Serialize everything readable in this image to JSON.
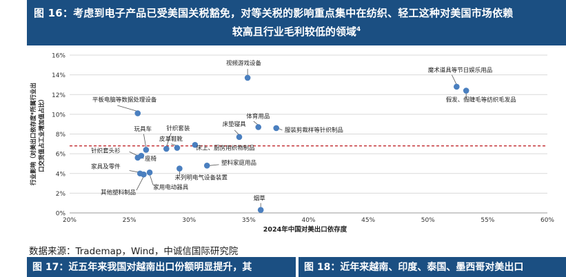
{
  "header": {
    "title_line1": "图 16：考虑到电子产品已受美国关税豁免，对等关税的影响重点集中在纺织、轻工这种对美国市场依赖",
    "title_line2": "较高且行业毛利较低的领域",
    "title_sup": "4"
  },
  "source": "数据来源：Trademap，Wind，中诚信国际研究院",
  "next_figures": {
    "fig17": "图 17：近五年来我国对越南出口份额明显提升，其",
    "fig18": "图 18：近年来越南、印度、泰国、墨西哥对美出口"
  },
  "chart_data": {
    "type": "scatter",
    "xlabel": "2024年中国对美出口依存度",
    "ylabel_lines": [
      "行业影响（对美出口依存度*所属行业出",
      "口交货值占工业增加值占比）"
    ],
    "xlim": [
      0.2,
      0.6
    ],
    "ylim": [
      0.0,
      0.16
    ],
    "xticks": [
      "20%",
      "25%",
      "30%",
      "35%",
      "40%",
      "45%",
      "50%",
      "55%",
      "60%"
    ],
    "yticks": [
      "0%",
      "2%",
      "4%",
      "6%",
      "8%",
      "10%",
      "12%",
      "14%",
      "16%"
    ],
    "point_color": "#4a7fbf",
    "threshold_color": "#c0272d",
    "threshold": 0.068,
    "points": [
      {
        "name": "视频游戏设备",
        "x": 0.349,
        "y": 0.137
      },
      {
        "name": "魔术道具等节日娱乐用品",
        "x": 0.524,
        "y": 0.128
      },
      {
        "name": "假发、假睫毛等纺织毛发品",
        "x": 0.532,
        "y": 0.124
      },
      {
        "name": "平板电脑等数据处理设备",
        "x": 0.257,
        "y": 0.101
      },
      {
        "name": "体育用品",
        "x": 0.358,
        "y": 0.087
      },
      {
        "name": "服装剪裁样等针织制品",
        "x": 0.373,
        "y": 0.086
      },
      {
        "name": "床垫寝具",
        "x": 0.342,
        "y": 0.077
      },
      {
        "name": "玩具车",
        "x": 0.264,
        "y": 0.064
      },
      {
        "name": "针织套装",
        "x": 0.281,
        "y": 0.065
      },
      {
        "name": "皮革鞋靴",
        "x": 0.29,
        "y": 0.066
      },
      {
        "name": "床上、厨房用织物制品",
        "x": 0.305,
        "y": 0.069
      },
      {
        "name": "针织套头衫",
        "x": 0.257,
        "y": 0.056
      },
      {
        "name": "座椅",
        "x": 0.26,
        "y": 0.058
      },
      {
        "name": "家具及零件",
        "x": 0.259,
        "y": 0.04
      },
      {
        "name": "家用电动器具",
        "x": 0.267,
        "y": 0.041
      },
      {
        "name": "未列明电气设备装置",
        "x": 0.292,
        "y": 0.045
      },
      {
        "name": "塑料家庭用品",
        "x": 0.315,
        "y": 0.048
      },
      {
        "name": "其他塑料制品",
        "x": 0.262,
        "y": 0.039
      },
      {
        "name": "烟草",
        "x": 0.36,
        "y": 0.003
      }
    ],
    "annotations": [
      {
        "text": "视频游戏设备",
        "tx": 0.331,
        "ty": 0.15,
        "anchor": "start",
        "line": [
          0.349,
          0.146,
          0.349,
          0.139
        ]
      },
      {
        "text": "魔术道具等节日娱乐用品",
        "tx": 0.5,
        "ty": 0.143,
        "anchor": "start",
        "line": [
          0.52,
          0.14,
          0.524,
          0.13
        ]
      },
      {
        "text": "假发、假睫毛等纺织毛发品",
        "tx": 0.515,
        "ty": 0.113,
        "anchor": "start",
        "line": [
          0.532,
          0.116,
          0.532,
          0.122
        ]
      },
      {
        "text": "平板电脑等数据处理设备",
        "tx": 0.219,
        "ty": 0.113,
        "anchor": "start",
        "line": [
          0.24,
          0.109,
          0.257,
          0.103
        ]
      },
      {
        "text": "体育用品",
        "tx": 0.348,
        "ty": 0.096,
        "anchor": "start",
        "line": [
          0.354,
          0.093,
          0.358,
          0.089
        ]
      },
      {
        "text": "服装剪裁样等针织制品",
        "tx": 0.38,
        "ty": 0.082,
        "anchor": "start",
        "line": [
          0.378,
          0.084,
          0.374,
          0.086
        ]
      },
      {
        "text": "床垫寝具",
        "tx": 0.328,
        "ty": 0.088,
        "anchor": "start",
        "line": [
          0.338,
          0.084,
          0.342,
          0.079
        ]
      },
      {
        "text": "玩具车",
        "tx": 0.254,
        "ty": 0.083,
        "anchor": "start",
        "line": [
          0.262,
          0.08,
          0.264,
          0.066
        ]
      },
      {
        "text": "针织套装",
        "tx": 0.281,
        "ty": 0.084,
        "anchor": "start",
        "line": [
          0.285,
          0.081,
          0.281,
          0.067
        ]
      },
      {
        "text": "皮革鞋靴",
        "tx": 0.275,
        "ty": 0.073,
        "anchor": "start",
        "line": [
          0.285,
          0.07,
          0.29,
          0.068
        ]
      },
      {
        "text": "床上、厨房用织物制品",
        "tx": 0.306,
        "ty": 0.064,
        "anchor": "start",
        "line": [
          0.306,
          0.066,
          0.305,
          0.069
        ]
      },
      {
        "text": "针织套头衫",
        "tx": 0.218,
        "ty": 0.061,
        "anchor": "start",
        "line": [
          0.25,
          0.062,
          0.257,
          0.058
        ]
      },
      {
        "text": "座椅",
        "tx": 0.263,
        "ty": 0.053,
        "anchor": "start",
        "line": [
          0.262,
          0.055,
          0.26,
          0.058
        ]
      },
      {
        "text": "家具及零件",
        "tx": 0.218,
        "ty": 0.045,
        "anchor": "start",
        "line": [
          0.25,
          0.043,
          0.259,
          0.041
        ]
      },
      {
        "text": "其他塑料制品",
        "tx": 0.226,
        "ty": 0.019,
        "anchor": "start",
        "line": [
          0.256,
          0.023,
          0.262,
          0.037
        ]
      },
      {
        "text": "家用电动器具",
        "tx": 0.27,
        "ty": 0.024,
        "anchor": "start",
        "line": [
          0.27,
          0.028,
          0.267,
          0.039
        ]
      },
      {
        "text": "未列明电气设备装置",
        "tx": 0.288,
        "ty": 0.034,
        "anchor": "start",
        "line": [
          0.292,
          0.037,
          0.292,
          0.043
        ]
      },
      {
        "text": "塑料家庭用品",
        "tx": 0.327,
        "ty": 0.049,
        "anchor": "start",
        "line": [
          0.325,
          0.049,
          0.317,
          0.048
        ]
      },
      {
        "text": "烟草",
        "tx": 0.354,
        "ty": 0.013,
        "anchor": "start",
        "line": [
          0.36,
          0.01,
          0.36,
          0.005
        ]
      }
    ]
  }
}
